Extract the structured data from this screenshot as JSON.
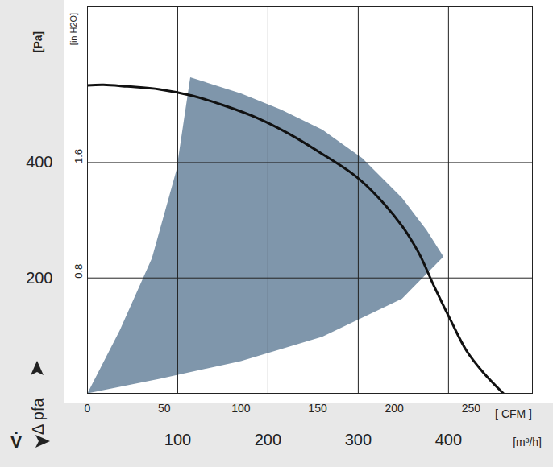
{
  "chart_data": {
    "type": "line",
    "x_title": "V̇",
    "y_title": "Δ pfa",
    "x_label": "[ CFM ]",
    "x2_label": "[m³/h]",
    "y_label": "[Pa]",
    "y2_label": "[in H2O]",
    "xlim": [
      0,
      290
    ],
    "xticks": [
      0,
      50,
      100,
      150,
      200,
      250
    ],
    "x2lim": [
      0,
      493
    ],
    "x2ticks": [
      100,
      200,
      300,
      400
    ],
    "ylim": [
      0,
      670
    ],
    "yticks": [
      200,
      400
    ],
    "y2lim": [
      0,
      2.69
    ],
    "y2ticks": [
      0.8,
      1.6
    ],
    "grid": true,
    "series": [
      {
        "type": "area",
        "color": "#7f96ab",
        "x": [
          0,
          21,
          42,
          58,
          67,
          100,
          126,
          153,
          179,
          205,
          221,
          232,
          205,
          153,
          100,
          47,
          0
        ],
        "values": [
          0,
          109,
          234,
          387,
          548,
          520,
          492,
          457,
          408,
          339,
          283,
          237,
          164,
          98,
          56,
          25,
          0
        ]
      },
      {
        "type": "line",
        "color": "#111111",
        "x": [
          0,
          10.5,
          26,
          47,
          68,
          89,
          111,
          132,
          153,
          174,
          189,
          205,
          216,
          226,
          237,
          247,
          258,
          271
        ],
        "values": [
          534,
          535,
          532,
          527,
          516,
          499,
          477,
          449,
          415,
          378,
          341,
          290,
          243,
          185,
          125,
          74,
          36,
          0
        ]
      }
    ]
  }
}
